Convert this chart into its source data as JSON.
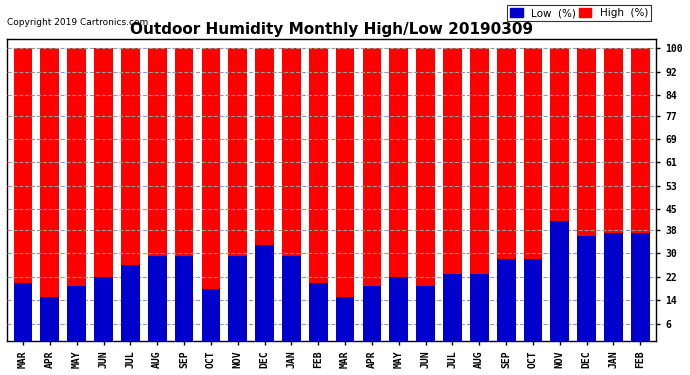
{
  "title": "Outdoor Humidity Monthly High/Low 20190309",
  "copyright": "Copyright 2019 Cartronics.com",
  "months": [
    "MAR",
    "APR",
    "MAY",
    "JUN",
    "JUL",
    "AUG",
    "SEP",
    "OCT",
    "NOV",
    "DEC",
    "JAN",
    "FEB",
    "MAR",
    "APR",
    "MAY",
    "JUN",
    "JUL",
    "AUG",
    "SEP",
    "OCT",
    "NOV",
    "DEC",
    "JAN",
    "FEB"
  ],
  "high_values": [
    100,
    100,
    100,
    100,
    100,
    100,
    100,
    100,
    100,
    100,
    100,
    100,
    100,
    100,
    100,
    100,
    100,
    100,
    100,
    100,
    100,
    100,
    100,
    100
  ],
  "low_values": [
    20,
    15,
    19,
    22,
    26,
    29,
    29,
    18,
    29,
    33,
    29,
    20,
    15,
    19,
    22,
    19,
    23,
    23,
    28,
    28,
    41,
    36,
    37,
    37
  ],
  "high_color": "#ff0000",
  "low_color": "#0000cc",
  "bg_color": "#ffffff",
  "grid_color": "#999999",
  "yticks": [
    6,
    14,
    22,
    30,
    38,
    45,
    53,
    61,
    69,
    77,
    84,
    92,
    100
  ],
  "ylim": [
    0,
    103
  ],
  "bar_width": 0.7,
  "title_fontsize": 11,
  "tick_fontsize": 7,
  "legend_fontsize": 7.5
}
